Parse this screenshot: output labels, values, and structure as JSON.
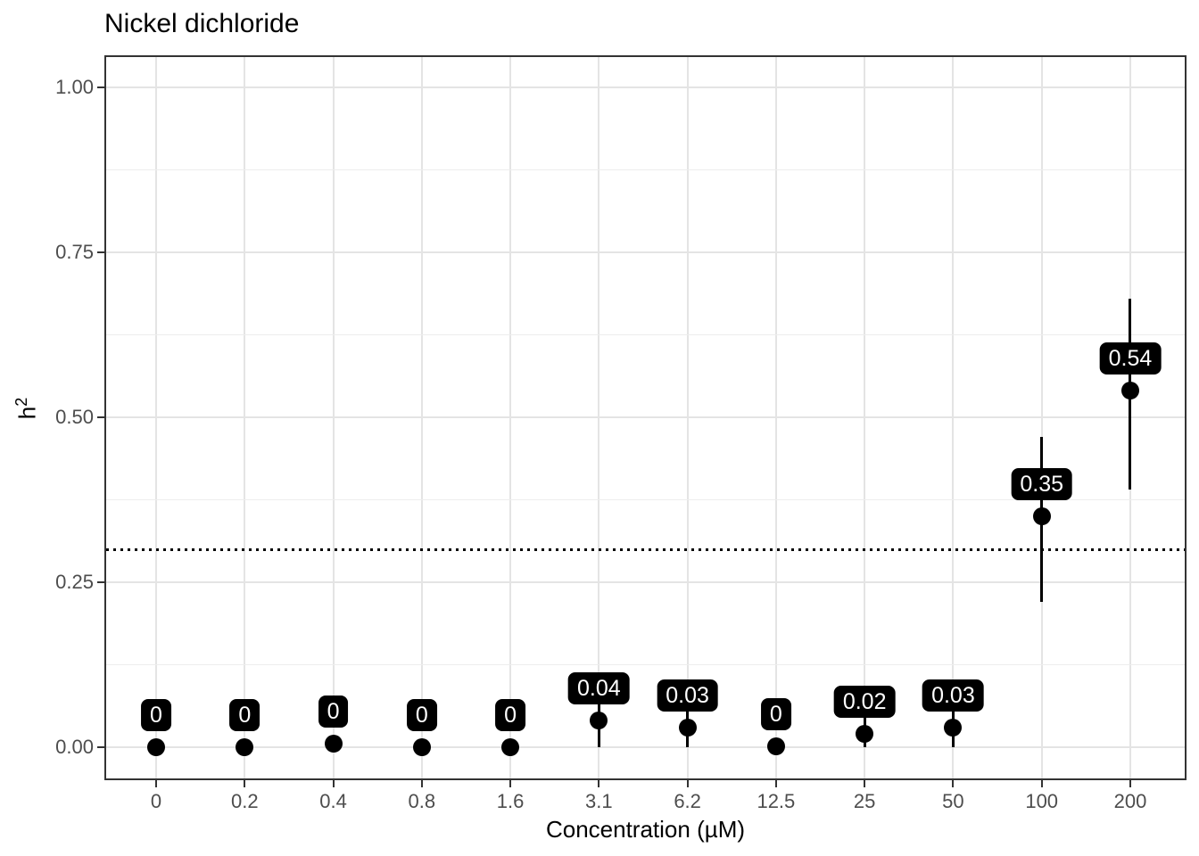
{
  "title": "Nickel dichloride",
  "chart_data": {
    "type": "scatter",
    "title": "Nickel dichloride",
    "xlabel": "Concentration (µM)",
    "ylabel": "h²",
    "ylabel_base": "h",
    "ylabel_sup": "2",
    "categories": [
      "0",
      "0.2",
      "0.4",
      "0.8",
      "1.6",
      "3.1",
      "6.2",
      "12.5",
      "25",
      "50",
      "100",
      "200"
    ],
    "yticks": [
      {
        "value": 1.0,
        "label": "1.00"
      },
      {
        "value": 0.75,
        "label": "0.75"
      },
      {
        "value": 0.5,
        "label": "0.50"
      },
      {
        "value": 0.25,
        "label": "0.25"
      },
      {
        "value": 0.0,
        "label": "0.00"
      }
    ],
    "ylim": [
      -0.05,
      1.05
    ],
    "grid": true,
    "legend": false,
    "reference_line": {
      "value": 0.3,
      "style": "dotted",
      "color": "#000000"
    },
    "points": [
      {
        "x": "0",
        "y": 0.0,
        "label": "0"
      },
      {
        "x": "0.2",
        "y": 0.0,
        "label": "0"
      },
      {
        "x": "0.4",
        "y": 0.005,
        "label": "0"
      },
      {
        "x": "0.8",
        "y": 0.0,
        "label": "0"
      },
      {
        "x": "1.6",
        "y": 0.0,
        "label": "0"
      },
      {
        "x": "3.1",
        "y": 0.04,
        "label": "0.04",
        "ci": [
          0.0,
          0.08
        ]
      },
      {
        "x": "6.2",
        "y": 0.03,
        "label": "0.03",
        "ci": [
          0.0,
          0.07
        ]
      },
      {
        "x": "12.5",
        "y": 0.002,
        "label": "0"
      },
      {
        "x": "25",
        "y": 0.02,
        "label": "0.02",
        "ci": [
          0.0,
          0.06
        ]
      },
      {
        "x": "50",
        "y": 0.03,
        "label": "0.03",
        "ci": [
          0.0,
          0.065
        ]
      },
      {
        "x": "100",
        "y": 0.35,
        "label": "0.35",
        "ci": [
          0.22,
          0.47
        ]
      },
      {
        "x": "200",
        "y": 0.54,
        "label": "0.54",
        "ci": [
          0.39,
          0.68
        ]
      }
    ],
    "colors": {
      "point": "#000000",
      "label_bg": "#000000",
      "label_text": "#ffffff",
      "grid_major": "#e4e4e4",
      "grid_minor": "#ededed",
      "panel_border": "#333333",
      "axis_text": "#4d4d4d",
      "background": "#ffffff"
    }
  }
}
